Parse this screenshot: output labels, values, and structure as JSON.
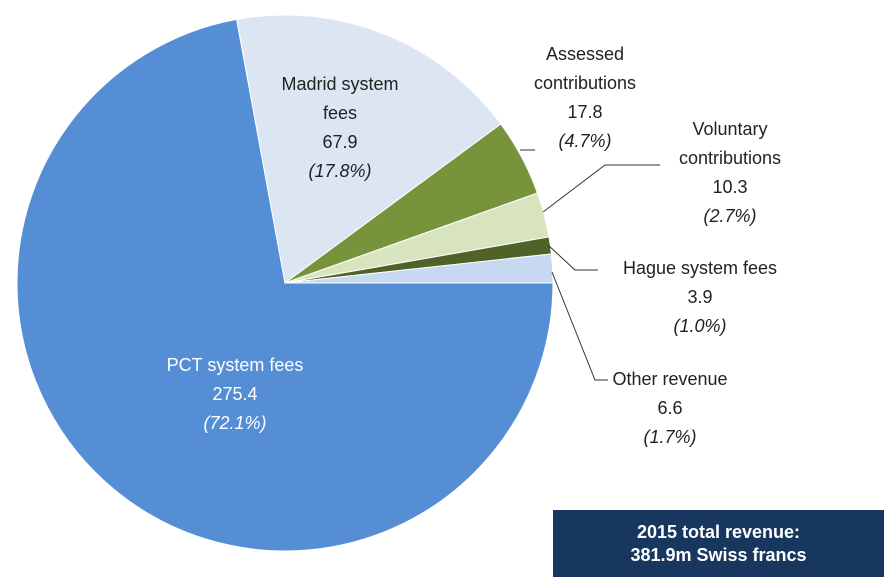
{
  "chart_data": {
    "type": "pie",
    "categories": [
      "PCT system fees",
      "Madrid system fees",
      "Assessed contributions",
      "Voluntary contributions",
      "Hague system fees",
      "Other revenue"
    ],
    "values": [
      275.4,
      67.9,
      17.8,
      10.3,
      3.9,
      6.6
    ],
    "percent_labels": [
      "(72.1%)",
      "(17.8%)",
      "(4.7%)",
      "(2.7%)",
      "(1.0%)",
      "(1.7%)"
    ],
    "colors": [
      "#558ed5",
      "#dce6f2",
      "#77933c",
      "#d7e4bd",
      "#4f6228",
      "#c6d9f1"
    ],
    "annotation": [
      "2015 total revenue:",
      "381.9m Swiss francs"
    ]
  }
}
